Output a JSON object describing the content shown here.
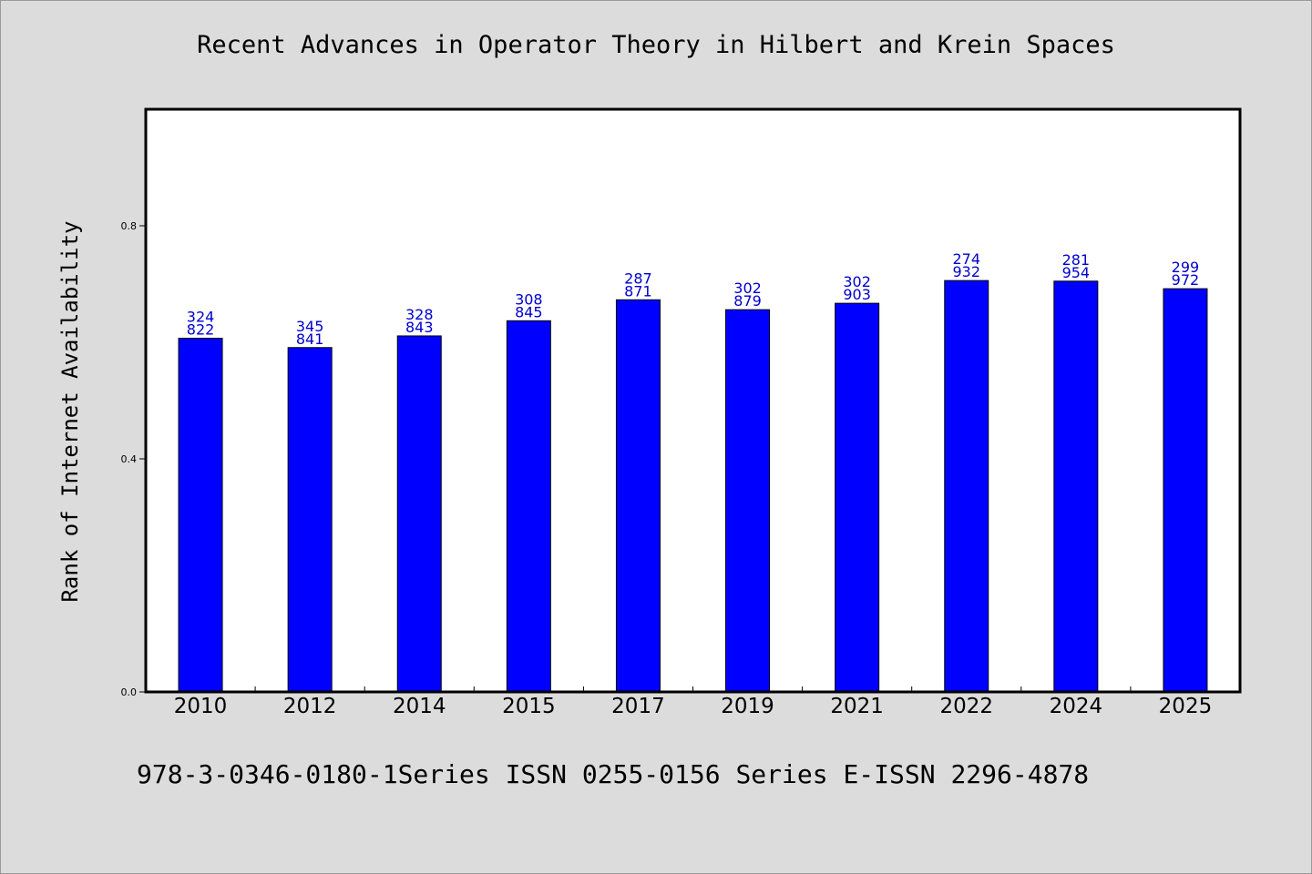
{
  "header": {
    "title": "Recent Advances in Operator Theory in Hilbert and Krein Spaces"
  },
  "footer": {
    "text": "978-3-0346-0180-1Series ISSN 0255-0156 Series E-ISSN 2296-4878"
  },
  "colors": {
    "bar": "#0000ff",
    "data_label": "#0000cc",
    "background": "#dcdcdc",
    "plot_background": "#ffffff"
  },
  "chart_data": {
    "type": "bar",
    "title": "Recent Advances in Operator Theory in Hilbert and Krein Spaces",
    "xlabel": "",
    "ylabel": "Rank of Internet Availability",
    "ylim": [
      0,
      1.0
    ],
    "yticks": [
      "0.0",
      "0.4",
      "0.8"
    ],
    "ytick_values": [
      0.0,
      0.4,
      0.8
    ],
    "grid": false,
    "categories": [
      "2010",
      "2012",
      "2014",
      "2015",
      "2017",
      "2019",
      "2021",
      "2022",
      "2024",
      "2025"
    ],
    "values": [
      0.607,
      0.591,
      0.611,
      0.637,
      0.673,
      0.656,
      0.667,
      0.706,
      0.705,
      0.692
    ],
    "data_labels": [
      [
        "324",
        "822"
      ],
      [
        "345",
        "841"
      ],
      [
        "328",
        "843"
      ],
      [
        "308",
        "845"
      ],
      [
        "287",
        "871"
      ],
      [
        "302",
        "879"
      ],
      [
        "302",
        "903"
      ],
      [
        "274",
        "932"
      ],
      [
        "281",
        "954"
      ],
      [
        "299",
        "972"
      ]
    ]
  }
}
